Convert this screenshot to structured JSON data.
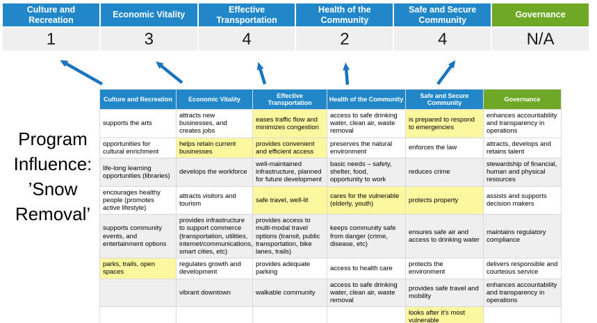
{
  "colors": {
    "header_blue": "#2187C8",
    "header_green": "#6EA826",
    "score_bg": "#EFEFEF",
    "row_gray": "#EFEFEF",
    "highlight_yellow": "#FBF8A0",
    "arrow_blue": "#1B75BE",
    "border_gray": "#D9D9D9"
  },
  "program_label": {
    "lines": [
      "Program",
      "Influence:",
      "’Snow",
      "Removal’"
    ]
  },
  "scoreboard": {
    "columns": [
      {
        "label": "Culture and Recreation",
        "score": "1",
        "theme": "blue"
      },
      {
        "label": "Economic Vitality",
        "score": "3",
        "theme": "blue"
      },
      {
        "label": "Effective Transportation",
        "score": "4",
        "theme": "blue"
      },
      {
        "label": "Health of the Community",
        "score": "2",
        "theme": "blue"
      },
      {
        "label": "Safe and Secure Community",
        "score": "4",
        "theme": "blue"
      },
      {
        "label": "Governance",
        "score": "N/A",
        "theme": "green"
      }
    ]
  },
  "matrix": {
    "headers": [
      {
        "label": "Culture and Recreation",
        "theme": "blue"
      },
      {
        "label": "Economic Vitality",
        "theme": "blue"
      },
      {
        "label": "Effective Transportation",
        "theme": "blue"
      },
      {
        "label": "Health of the Community",
        "theme": "blue"
      },
      {
        "label": "Safe and Secure Community",
        "theme": "blue"
      },
      {
        "label": "Governance",
        "theme": "green"
      }
    ],
    "rows": [
      {
        "shade": "white",
        "cells": [
          {
            "text": "supports the arts",
            "highlight": false
          },
          {
            "text": "attracts new businesses, and creates jobs",
            "highlight": false
          },
          {
            "text": "eases traffic flow and minimizes congestion",
            "highlight": true
          },
          {
            "text": "access to safe drinking water, clean air, waste removal",
            "highlight": false
          },
          {
            "text": "is prepared to respond to emergencies",
            "highlight": true
          },
          {
            "text": "enhances accountability and transparency in operations",
            "highlight": false
          }
        ]
      },
      {
        "shade": "white",
        "cells": [
          {
            "text": "opportunities for cultural enrichment",
            "highlight": false
          },
          {
            "text": "helps retain current businesses",
            "highlight": true
          },
          {
            "text": "provides convenient and efficient access",
            "highlight": true
          },
          {
            "text": "preserves the natural environment",
            "highlight": false
          },
          {
            "text": "enforces the law",
            "highlight": false
          },
          {
            "text": "attracts, develops and retains talent",
            "highlight": false
          }
        ]
      },
      {
        "shade": "gray",
        "cells": [
          {
            "text": "life-long learning opportunities (libraries)",
            "highlight": false
          },
          {
            "text": "develops the workforce",
            "highlight": false
          },
          {
            "text": "well-maintained infrastructure, planned for future development",
            "highlight": false
          },
          {
            "text": "basic needs – safety, shelter, food, opportunity to work",
            "highlight": true
          },
          {
            "text": "reduces crime",
            "highlight": false
          },
          {
            "text": "stewardship of financial, human and physical resources",
            "highlight": false
          }
        ]
      },
      {
        "shade": "white",
        "cells": [
          {
            "text": "encourages healthy people (promotes active lifestyle)",
            "highlight": false
          },
          {
            "text": "attracts visitors and tourism",
            "highlight": false
          },
          {
            "text": "safe travel, well-lit",
            "highlight": true
          },
          {
            "text": "cares for the vulnerable (elderly, youth)",
            "highlight": true
          },
          {
            "text": "protects property",
            "highlight": true
          },
          {
            "text": "assists and supports decision makers",
            "highlight": false
          }
        ]
      },
      {
        "shade": "gray",
        "cells": [
          {
            "text": "supports community events, and entertainment options",
            "highlight": false
          },
          {
            "text": "provides infrastructure to support commerce (transportation, utilities, internet/communications, smart cities, etc)",
            "highlight": true
          },
          {
            "text": "provides access to multi-modal travel options (transit, public transportation, bike lanes, trails)",
            "highlight": true
          },
          {
            "text": "keeps community safe from danger (crime, disease, etc)",
            "highlight": true
          },
          {
            "text": "ensures safe air and access to drinking water",
            "highlight": false
          },
          {
            "text": "maintains regulatory compliance",
            "highlight": false
          }
        ]
      },
      {
        "shade": "white",
        "cells": [
          {
            "text": "parks, trails, open spaces",
            "highlight": true
          },
          {
            "text": "regulates growth and development",
            "highlight": false
          },
          {
            "text": "provides adequate parking",
            "highlight": false
          },
          {
            "text": "access to health care",
            "highlight": false
          },
          {
            "text": "protects the environment",
            "highlight": false
          },
          {
            "text": "delivers responsible and courteous service",
            "highlight": false
          }
        ]
      },
      {
        "shade": "gray",
        "cells": [
          {
            "text": "",
            "highlight": false
          },
          {
            "text": "vibrant downtown",
            "highlight": false
          },
          {
            "text": "walkable community",
            "highlight": false
          },
          {
            "text": "access to safe drinking water, clean air, waste removal",
            "highlight": false
          },
          {
            "text": "provides safe travel and mobility",
            "highlight": true
          },
          {
            "text": "enhances accountability and transparency in operations",
            "highlight": false
          }
        ]
      },
      {
        "shade": "white",
        "cells": [
          {
            "text": "",
            "highlight": false
          },
          {
            "text": "",
            "highlight": false
          },
          {
            "text": "",
            "highlight": false
          },
          {
            "text": "",
            "highlight": false
          },
          {
            "text": "looks after it's most vulnerable",
            "highlight": true
          },
          {
            "text": "",
            "highlight": false
          }
        ]
      }
    ]
  }
}
